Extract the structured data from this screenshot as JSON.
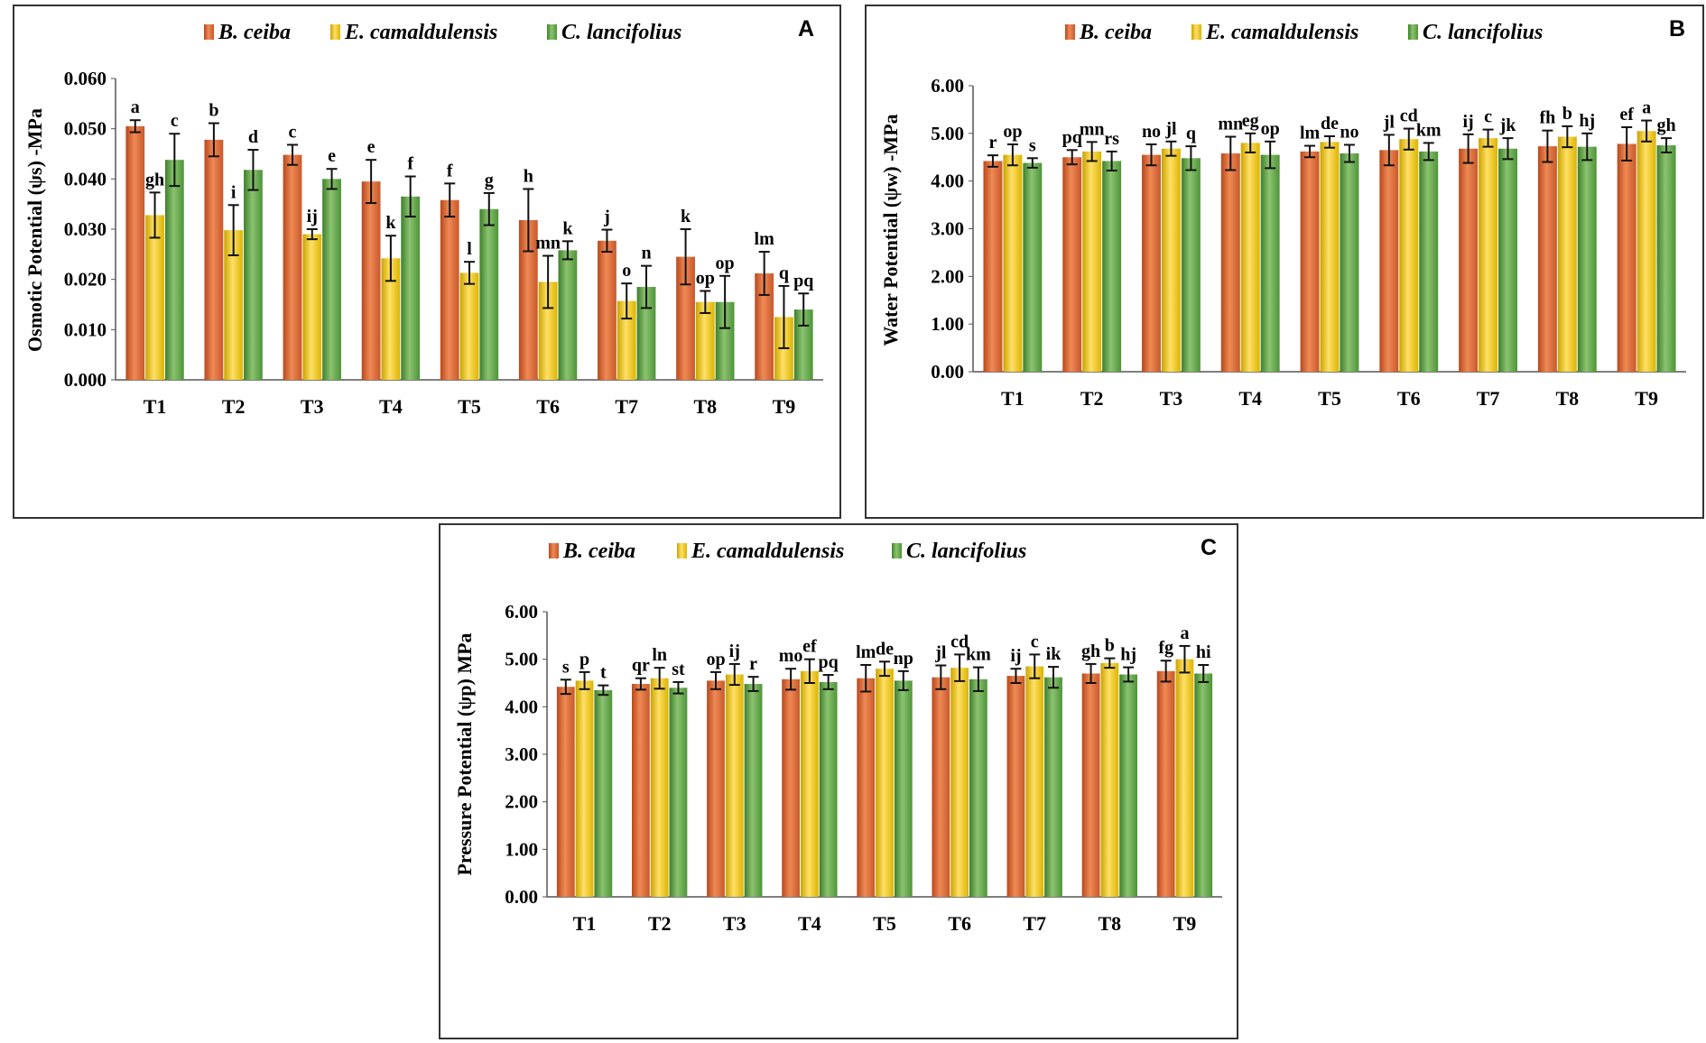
{
  "series_names": [
    "B. ceiba",
    "E. camaldulensis",
    "C. lancifolius"
  ],
  "colors": {
    "B. ceiba": [
      "#b8481c",
      "#ef8a55",
      "#c8582a"
    ],
    "E. camaldulensis": [
      "#caa300",
      "#ffe066",
      "#dcb400"
    ],
    "C. lancifolius": [
      "#3e7f2c",
      "#8cc370",
      "#4d9438"
    ]
  },
  "chart_data": [
    {
      "type": "bar",
      "panel_label": "A",
      "ylabel": "Osmotic Potential  (ψs) -MPa",
      "ylim": [
        0,
        0.06
      ],
      "yticks": [
        "0.000",
        "0.010",
        "0.020",
        "0.030",
        "0.040",
        "0.050",
        "0.060"
      ],
      "categories": [
        "T1",
        "T2",
        "T3",
        "T4",
        "T5",
        "T6",
        "T7",
        "T8",
        "T9"
      ],
      "series": [
        {
          "name": "B. ceiba",
          "values": [
            0.0505,
            0.0478,
            0.0448,
            0.0395,
            0.0358,
            0.0318,
            0.0277,
            0.0245,
            0.0212
          ],
          "errors": [
            0.0012,
            0.0033,
            0.002,
            0.0043,
            0.0033,
            0.0062,
            0.0022,
            0.0055,
            0.0043
          ],
          "labels": [
            "a",
            "b",
            "c",
            "e",
            "f",
            "h",
            "j",
            "k",
            "lm"
          ]
        },
        {
          "name": "E. camaldulensis",
          "values": [
            0.0328,
            0.0298,
            0.029,
            0.0242,
            0.0213,
            0.0195,
            0.0157,
            0.0155,
            0.0125
          ],
          "errors": [
            0.0045,
            0.005,
            0.001,
            0.0045,
            0.0022,
            0.0052,
            0.0035,
            0.0022,
            0.0062
          ],
          "labels": [
            "gh",
            "i",
            "ij",
            "k",
            "l",
            "mn",
            "o",
            "op",
            "q"
          ]
        },
        {
          "name": "C. lancifolius",
          "values": [
            0.0438,
            0.0418,
            0.04,
            0.0365,
            0.034,
            0.0258,
            0.0185,
            0.0155,
            0.014
          ],
          "errors": [
            0.0052,
            0.004,
            0.002,
            0.004,
            0.0032,
            0.0018,
            0.0042,
            0.0052,
            0.0032
          ],
          "labels": [
            "c",
            "d",
            "e",
            "f",
            "g",
            "k",
            "n",
            "op",
            "pq"
          ]
        }
      ]
    },
    {
      "type": "bar",
      "panel_label": "B",
      "ylabel": "Water Potential (ψw) -MPa",
      "ylim": [
        0,
        6
      ],
      "yticks": [
        "0.00",
        "1.00",
        "2.00",
        "3.00",
        "4.00",
        "5.00",
        "6.00"
      ],
      "categories": [
        "T1",
        "T2",
        "T3",
        "T4",
        "T5",
        "T6",
        "T7",
        "T8",
        "T9"
      ],
      "series": [
        {
          "name": "B. ceiba",
          "values": [
            4.42,
            4.5,
            4.55,
            4.58,
            4.62,
            4.65,
            4.68,
            4.73,
            4.78
          ],
          "errors": [
            0.12,
            0.15,
            0.22,
            0.35,
            0.12,
            0.32,
            0.3,
            0.33,
            0.35
          ],
          "labels": [
            "r",
            "pq",
            "no",
            "mn",
            "lm",
            "jl",
            "ij",
            "fh",
            "ef"
          ]
        },
        {
          "name": "E. camaldulensis",
          "values": [
            4.55,
            4.62,
            4.68,
            4.8,
            4.82,
            4.88,
            4.9,
            4.93,
            5.05
          ],
          "errors": [
            0.22,
            0.2,
            0.15,
            0.2,
            0.12,
            0.22,
            0.18,
            0.22,
            0.22
          ],
          "labels": [
            "op",
            "mn",
            "jl",
            "eg",
            "de",
            "cd",
            "c",
            "b",
            "a"
          ]
        },
        {
          "name": "C. lancifolius",
          "values": [
            4.38,
            4.42,
            4.48,
            4.55,
            4.58,
            4.62,
            4.68,
            4.72,
            4.75
          ],
          "errors": [
            0.1,
            0.2,
            0.25,
            0.28,
            0.18,
            0.18,
            0.22,
            0.28,
            0.15
          ],
          "labels": [
            "s",
            "rs",
            "q",
            "op",
            "no",
            "km",
            "jk",
            "hj",
            "gh"
          ]
        }
      ]
    },
    {
      "type": "bar",
      "panel_label": "C",
      "ylabel": "Pressure Potential (ψp) MPa",
      "ylim": [
        0,
        6
      ],
      "yticks": [
        "0.00",
        "1.00",
        "2.00",
        "3.00",
        "4.00",
        "5.00",
        "6.00"
      ],
      "categories": [
        "T1",
        "T2",
        "T3",
        "T4",
        "T5",
        "T6",
        "T7",
        "T8",
        "T9"
      ],
      "series": [
        {
          "name": "B. ceiba",
          "values": [
            4.42,
            4.48,
            4.55,
            4.58,
            4.6,
            4.62,
            4.65,
            4.7,
            4.75
          ],
          "errors": [
            0.15,
            0.12,
            0.18,
            0.22,
            0.28,
            0.25,
            0.15,
            0.2,
            0.22
          ],
          "labels": [
            "s",
            "qr",
            "op",
            "mo",
            "lm",
            "jl",
            "ij",
            "gh",
            "fg"
          ]
        },
        {
          "name": "E. camaldulensis",
          "values": [
            4.55,
            4.6,
            4.68,
            4.75,
            4.8,
            4.82,
            4.85,
            4.92,
            5.0
          ],
          "errors": [
            0.18,
            0.22,
            0.22,
            0.25,
            0.15,
            0.28,
            0.25,
            0.1,
            0.28
          ],
          "labels": [
            "p",
            "ln",
            "ij",
            "ef",
            "de",
            "cd",
            "c",
            "b",
            "a"
          ]
        },
        {
          "name": "C. lancifolius",
          "values": [
            4.35,
            4.4,
            4.48,
            4.52,
            4.55,
            4.58,
            4.62,
            4.68,
            4.7
          ],
          "errors": [
            0.1,
            0.12,
            0.15,
            0.15,
            0.2,
            0.25,
            0.22,
            0.15,
            0.18
          ],
          "labels": [
            "t",
            "st",
            "r",
            "pq",
            "np",
            "km",
            "ik",
            "hj",
            "hi"
          ]
        }
      ]
    }
  ]
}
